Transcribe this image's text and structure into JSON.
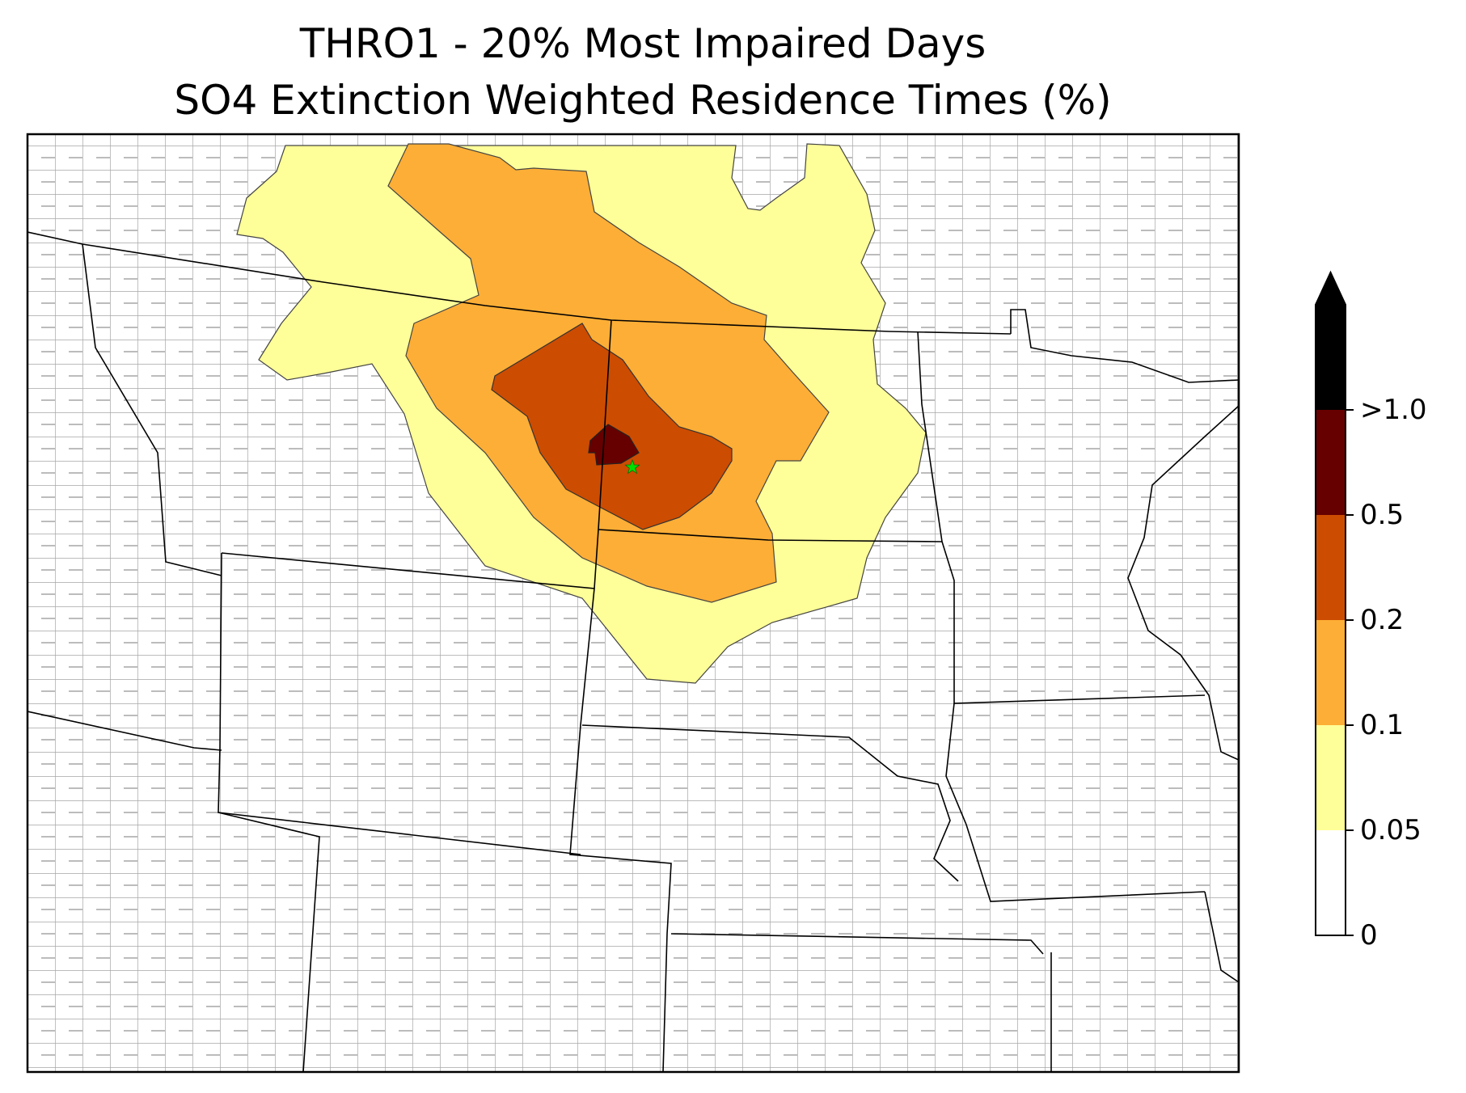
{
  "title": {
    "line1": "THRO1 - 20% Most Impaired Days",
    "line2": "SO4 Extinction Weighted Residence Times (%)"
  },
  "map": {
    "site_marker": "star-icon",
    "site_marker_color": "#00e000",
    "state_border_color": "#000000",
    "county_border_color": "#a0a0a0"
  },
  "colorbar": {
    "extend": "max",
    "levels": [
      {
        "label": "0",
        "color": "#ffffff"
      },
      {
        "label": "0.05",
        "color": "#ffff99"
      },
      {
        "label": "0.1",
        "color": "#fdae36"
      },
      {
        "label": "0.2",
        "color": "#cc4c02"
      },
      {
        "label": "0.5",
        "color": "#660000"
      },
      {
        "label": ">1.0",
        "color": "#000000"
      }
    ],
    "ticks": [
      "0",
      "0.05",
      "0.1",
      "0.2",
      "0.5",
      ">1.0"
    ]
  }
}
